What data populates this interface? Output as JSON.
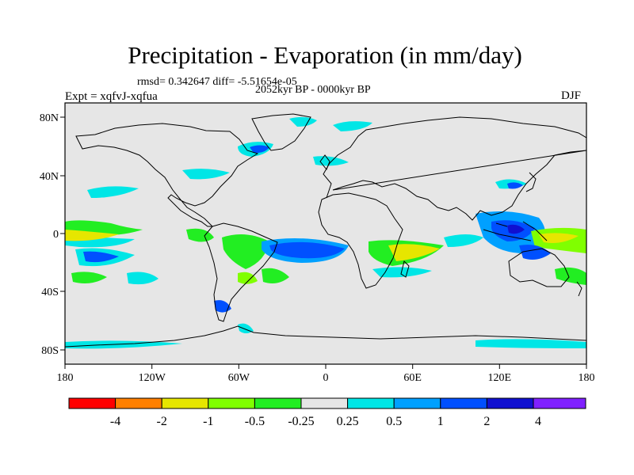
{
  "header": {
    "title": "Precipitation - Evaporation (in mm/day)",
    "stats": "rmsd= 0.342647 diff= -5.51654e-05",
    "period": "2052kyr BP - 0000kyr BP",
    "experiment": "Expt = xqfvJ-xqfua",
    "season": "DJF"
  },
  "axes": {
    "x_ticks": [
      "180",
      "120W",
      "60W",
      "0",
      "60E",
      "120E",
      "180"
    ],
    "y_ticks": [
      "80N",
      "40N",
      "0",
      "40S",
      "80S"
    ]
  },
  "colorbar": {
    "colors": [
      "#ff0000",
      "#ff8000",
      "#e6e600",
      "#80ff00",
      "#22ee22",
      "#e6e6e6",
      "#00e6e6",
      "#00a0ff",
      "#0050ff",
      "#1010d0",
      "#8020ff"
    ],
    "labels": [
      "-4",
      "-2",
      "-1",
      "-0.5",
      "-0.25",
      "0.25",
      "0.5",
      "1",
      "2",
      "4"
    ]
  },
  "colors": {
    "ocean_land_background": "#e6e6e6",
    "coastline": "#000000"
  }
}
